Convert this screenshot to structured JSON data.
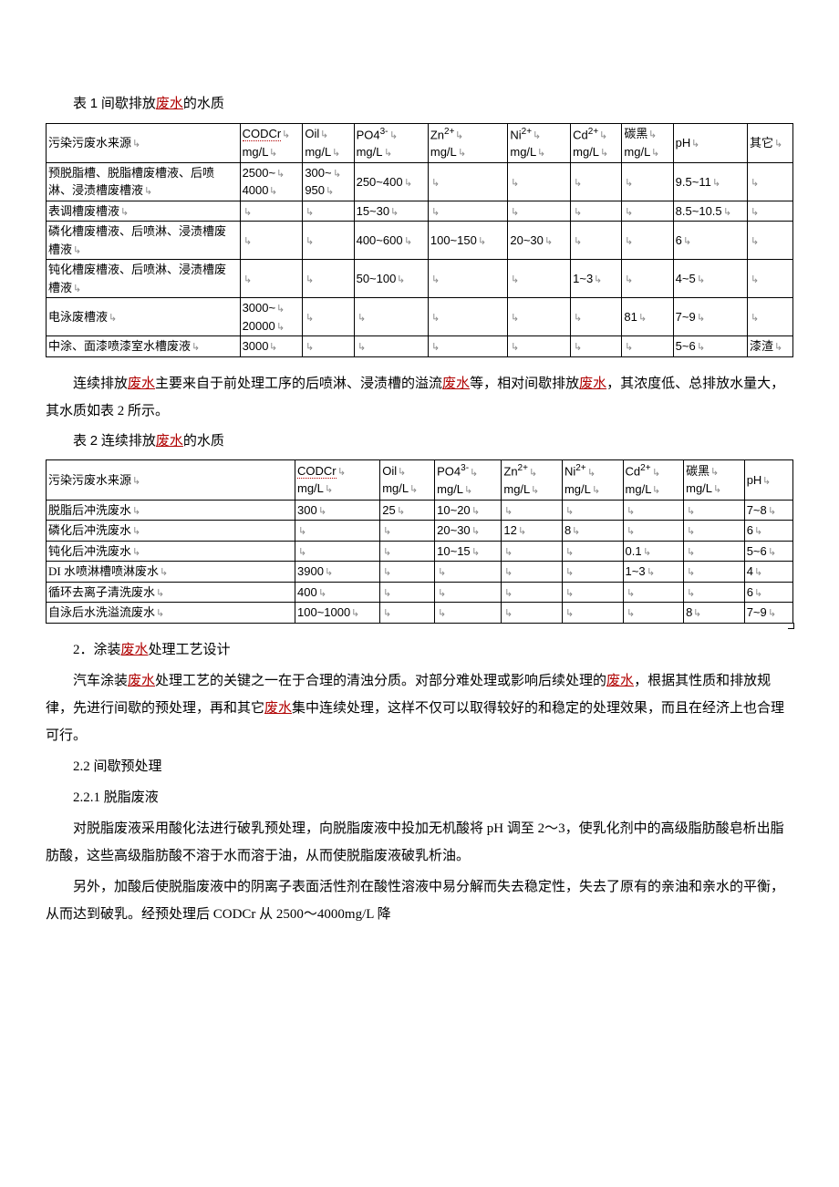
{
  "table1": {
    "caption_pre": "表 ",
    "caption_num": "1",
    "caption_post": "  间歇排放",
    "caption_link": "废水",
    "caption_tail": "的水质",
    "headers": {
      "source": "污染污废水来源",
      "cod": "CODCr",
      "oil": "Oil",
      "po4": "PO4",
      "zn": "Zn",
      "ni": "Ni",
      "cd": "Cd",
      "carbon": "碳黑",
      "ph": "pH",
      "other": "其它",
      "unit": "mg/L"
    },
    "rows": [
      {
        "src": "预脱脂槽、脱脂槽废槽液、后喷淋、浸渍槽废槽液",
        "cod_a": "2500~",
        "cod_b": "4000",
        "oil_a": "300~",
        "oil_b": "950",
        "po4": "250~400",
        "zn": "",
        "ni": "",
        "cd": "",
        "carbon": "",
        "ph": "9.5~11",
        "other": ""
      },
      {
        "src": "表调槽废槽液",
        "cod": "",
        "oil": "",
        "po4": "15~30",
        "zn": "",
        "ni": "",
        "cd": "",
        "carbon": "",
        "ph": "8.5~10.5",
        "other": ""
      },
      {
        "src": "磷化槽废槽液、后喷淋、浸渍槽废槽液",
        "cod": "",
        "oil": "",
        "po4": "400~600",
        "zn": "100~150",
        "ni": "20~30",
        "cd": "",
        "carbon": "",
        "ph": "6",
        "other": ""
      },
      {
        "src": "钝化槽废槽液、后喷淋、浸渍槽废槽液",
        "cod": "",
        "oil": "",
        "po4": "50~100",
        "zn": "",
        "ni": "",
        "cd": "1~3",
        "carbon": "",
        "ph": "4~5",
        "other": ""
      },
      {
        "src": "电泳废槽液",
        "cod_a": "3000~",
        "cod_b": "20000",
        "oil": "",
        "po4": "",
        "zn": "",
        "ni": "",
        "cd": "",
        "carbon": "81",
        "ph": "7~9",
        "other": ""
      },
      {
        "src": "中涂、面漆喷漆室水槽废液",
        "cod": "3000",
        "oil": "",
        "po4": "",
        "zn": "",
        "ni": "",
        "cd": "",
        "carbon": "",
        "ph": "5~6",
        "other": "漆渣"
      }
    ],
    "col_widths": [
      "170",
      "55",
      "45",
      "65",
      "70",
      "55",
      "45",
      "45",
      "65",
      "40"
    ]
  },
  "mid_para": {
    "t1": "连续排放",
    "l1": "废水",
    "t2": "主要来自于前处理工序的后喷淋、浸渍槽的溢流",
    "l2": "废水",
    "t3": "等，相对间歇排放",
    "l3": "废水",
    "t4": "，其浓度低、总排放水量大，其水质如表 2 所示。"
  },
  "table2": {
    "caption_pre": "表 ",
    "caption_num": "2",
    "caption_post": "  连续排放",
    "caption_link": "废水",
    "caption_tail": "的水质",
    "headers": {
      "source": "污染污废水来源",
      "cod": "CODCr",
      "oil": "Oil",
      "po4": "PO4",
      "zn": "Zn",
      "ni": "Ni",
      "cd": "Cd",
      "carbon": "碳黑",
      "ph": "pH",
      "unit": "mg/L"
    },
    "rows": [
      {
        "src": "脱脂后冲洗废水",
        "cod": "300",
        "oil": "25",
        "po4": "10~20",
        "zn": "",
        "ni": "",
        "cd": "",
        "carbon": "",
        "ph": "7~8"
      },
      {
        "src": "磷化后冲洗废水",
        "cod": "",
        "oil": "",
        "po4": "20~30",
        "zn": "12",
        "ni": "8",
        "cd": "",
        "carbon": "",
        "ph": "6"
      },
      {
        "src": "钝化后冲洗废水",
        "cod": "",
        "oil": "",
        "po4": "10~15",
        "zn": "",
        "ni": "",
        "cd": "0.1",
        "carbon": "",
        "ph": "5~6"
      },
      {
        "src": "DI 水喷淋槽喷淋废水",
        "cod": "3900",
        "oil": "",
        "po4": "",
        "zn": "",
        "ni": "",
        "cd": "1~3",
        "carbon": "",
        "ph": "4"
      },
      {
        "src": "循环去离子清洗废水",
        "cod": "400",
        "oil": "",
        "po4": "",
        "zn": "",
        "ni": "",
        "cd": "",
        "carbon": "",
        "ph": "6"
      },
      {
        "src": "自泳后水洗溢流废水",
        "cod": "100~1000",
        "oil": "",
        "po4": "",
        "zn": "",
        "ni": "",
        "cd": "",
        "carbon": "8",
        "ph": "7~9"
      }
    ],
    "col_widths": [
      "205",
      "70",
      "45",
      "55",
      "50",
      "50",
      "50",
      "50",
      "40"
    ]
  },
  "sections": {
    "s2_pre": "2．涂装",
    "s2_link": "废水",
    "s2_post": "处理工艺设计",
    "p1_a": "汽车涂装",
    "p1_l1": "废水",
    "p1_b": "处理工艺的关键之一在于合理的清浊分质。对部分难处理或影响后续处理的",
    "p1_l2": "废水",
    "p1_c": "，根据其性质和排放规律，先进行间歇的预处理，再和其它",
    "p1_l3": "废水",
    "p1_d": "集中连续处理，这样不仅可以取得较好的和稳定的处理效果，而且在经济上也合理可行。",
    "s22": "2.2  间歇预处理",
    "s221": "2.2.1  脱脂废液",
    "p2": "对脱脂废液采用酸化法进行破乳预处理，向脱脂废液中投加无机酸将 pH 调至 2～3，使乳化剂中的高级脂肪酸皂析出脂肪酸，这些高级脂肪酸不溶于水而溶于油，从而使脱脂废液破乳析油。",
    "p3": "另外，加酸后使脱脂废液中的阴离子表面活性剂在酸性溶液中易分解而失去稳定性，失去了原有的亲油和亲水的平衡，从而达到破乳。经预处理后 CODCr 从 2500～4000mg/L 降"
  }
}
